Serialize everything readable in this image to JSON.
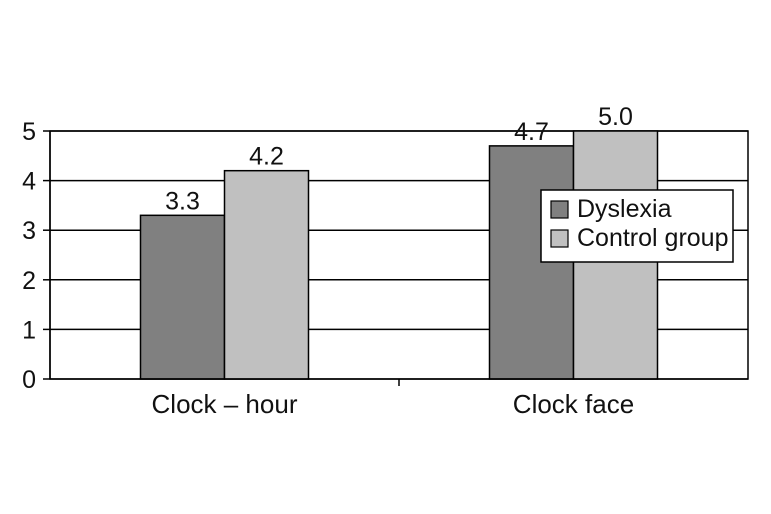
{
  "chart_data": {
    "type": "bar",
    "title": "",
    "xlabel": "",
    "ylabel": "",
    "categories": [
      "Clock – hour",
      "Clock face"
    ],
    "series": [
      {
        "name": "Dyslexia",
        "values": [
          3.3,
          4.7
        ],
        "labels": [
          "3.3",
          "4.7"
        ],
        "color": "#808080"
      },
      {
        "name": "Control group",
        "values": [
          4.2,
          5.0
        ],
        "labels": [
          "4.2",
          "5.0"
        ],
        "color": "#c0c0c0"
      }
    ],
    "ylim": [
      0,
      5
    ],
    "yticks": [
      0,
      1,
      2,
      3,
      4,
      5
    ],
    "grid": true,
    "legend": "right"
  }
}
